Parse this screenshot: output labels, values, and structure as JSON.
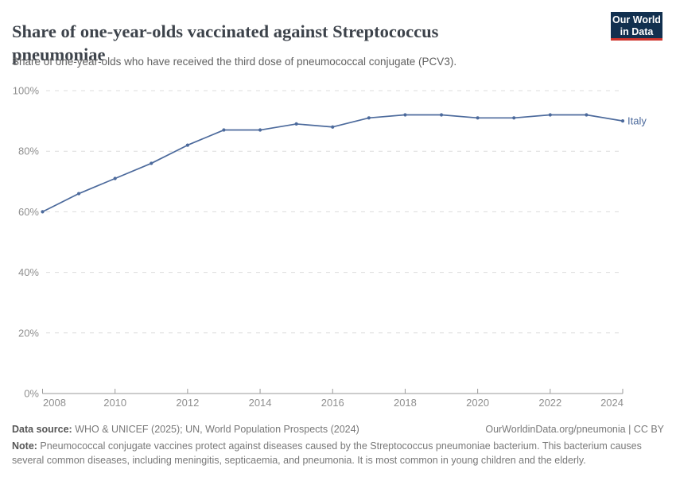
{
  "header": {
    "title": "Share of one-year-olds vaccinated against Streptococcus pneumoniae",
    "subtitle": "Share of one-year-olds who have received the third dose of pneumococcal conjugate (PCV3).",
    "logo_line1": "Our World",
    "logo_line2": "in Data"
  },
  "chart_data": {
    "type": "line",
    "title": "Share of one-year-olds vaccinated against Streptococcus pneumoniae",
    "xlabel": "",
    "ylabel": "",
    "x": [
      2008,
      2009,
      2010,
      2011,
      2012,
      2013,
      2014,
      2015,
      2016,
      2017,
      2018,
      2019,
      2020,
      2021,
      2022,
      2023,
      2024
    ],
    "series": [
      {
        "name": "Italy",
        "end_label": "Italy",
        "color": "#4c6a9c",
        "values": [
          60,
          66,
          71,
          76,
          82,
          87,
          87,
          89,
          88,
          91,
          92,
          92,
          91,
          91,
          92,
          92,
          90
        ]
      }
    ],
    "xlim": [
      2008,
      2024
    ],
    "ylim": [
      0,
      100
    ],
    "x_ticks": [
      2008,
      2010,
      2012,
      2014,
      2016,
      2018,
      2020,
      2022,
      2024
    ],
    "x_tick_labels": [
      "2008",
      "2010",
      "2012",
      "2014",
      "2016",
      "2018",
      "2020",
      "2022",
      "2024"
    ],
    "y_ticks": [
      0,
      20,
      40,
      60,
      80,
      100
    ],
    "y_tick_labels": [
      "0%",
      "20%",
      "40%",
      "60%",
      "80%",
      "100%"
    ],
    "grid": "horizontal dashed gridlines, solid baseline at 0%",
    "legend_position": "label at end of line"
  },
  "footer": {
    "datasource_label": "Data source:",
    "datasource_text": " WHO & UNICEF (2025); UN, World Population Prospects (2024)",
    "attribution": "OurWorldinData.org/pneumonia | CC BY",
    "note_label": "Note:",
    "note_text": " Pneumococcal conjugate vaccines protect against diseases caused by the Streptococcus pneumoniae bacterium. This bacterium causes several common diseases, including meningitis, septicaemia, and pneumonia. It is most common in young children and the elderly."
  },
  "colors": {
    "line_blue": "#4c6a9c",
    "logo_navy": "#12304f",
    "logo_red": "#cf342c",
    "grid_gray": "#dcdcdc",
    "axis_gray": "#9a9a9a",
    "tick_label_gray": "#8f8f8f",
    "title_color": "#3d434b"
  }
}
